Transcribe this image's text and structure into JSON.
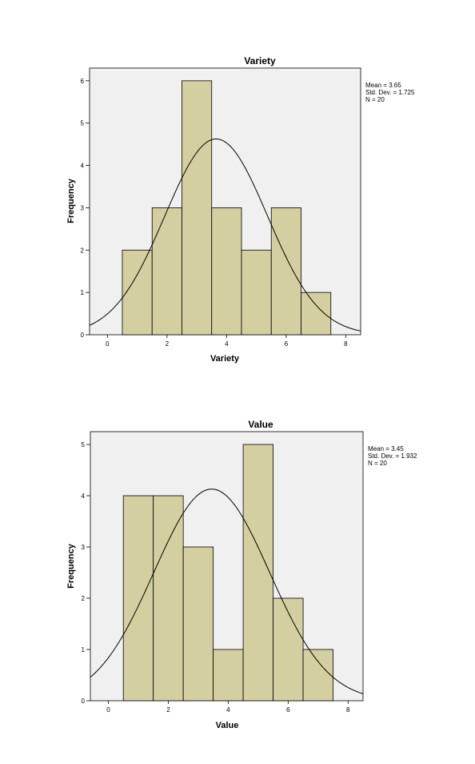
{
  "chart_data": [
    {
      "type": "bar",
      "subtype": "histogram",
      "title": "Variety",
      "xlabel": "Variety",
      "ylabel": "Frequency",
      "xlim": [
        -0.6,
        8.5
      ],
      "ylim": [
        0,
        6.3
      ],
      "x_ticks": [
        "0",
        "2",
        "4",
        "6",
        "8"
      ],
      "y_ticks": [
        "0",
        "1",
        "2",
        "3",
        "4",
        "5",
        "6"
      ],
      "bins": [
        {
          "center": 1,
          "value": 2
        },
        {
          "center": 2,
          "value": 3
        },
        {
          "center": 3,
          "value": 6
        },
        {
          "center": 4,
          "value": 3
        },
        {
          "center": 5,
          "value": 2
        },
        {
          "center": 6,
          "value": 3
        },
        {
          "center": 7,
          "value": 1
        }
      ],
      "normal_curve": {
        "mean": 3.65,
        "sd": 1.725,
        "n": 20
      },
      "stats": {
        "mean": "Mean = 3.65",
        "sd": "Std. Dev. = 1.725",
        "n": "N = 20"
      },
      "bar_color": "#d3cfa0",
      "background_color": "#f0f0f0",
      "grid": false,
      "stats_placement": "top-right outside plot"
    },
    {
      "type": "bar",
      "subtype": "histogram",
      "title": "Value",
      "xlabel": "Value",
      "ylabel": "Frequency",
      "xlim": [
        -0.6,
        8.5
      ],
      "ylim": [
        0,
        5.25
      ],
      "x_ticks": [
        "0",
        "2",
        "4",
        "6",
        "8"
      ],
      "y_ticks": [
        "0",
        "1",
        "2",
        "3",
        "4",
        "5"
      ],
      "bins": [
        {
          "center": 1,
          "value": 4
        },
        {
          "center": 2,
          "value": 4
        },
        {
          "center": 3,
          "value": 3
        },
        {
          "center": 4,
          "value": 1
        },
        {
          "center": 5,
          "value": 5
        },
        {
          "center": 6,
          "value": 2
        },
        {
          "center": 7,
          "value": 1
        }
      ],
      "normal_curve": {
        "mean": 3.45,
        "sd": 1.932,
        "n": 20
      },
      "stats": {
        "mean": "Mean = 3.45",
        "sd": "Std. Dev. = 1.932",
        "n": "N = 20"
      },
      "bar_color": "#d3cfa0",
      "background_color": "#f0f0f0",
      "grid": false,
      "stats_placement": "top-right outside plot"
    }
  ]
}
